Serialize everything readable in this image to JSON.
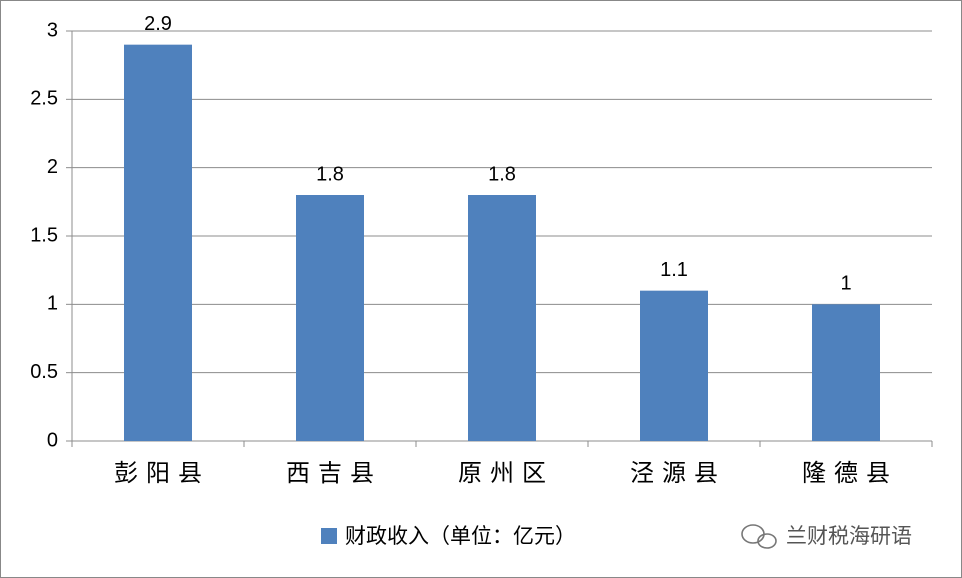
{
  "chart_data": {
    "type": "bar",
    "categories": [
      "彭阳县",
      "西吉县",
      "原州区",
      "泾源县",
      "隆德县"
    ],
    "series": [
      {
        "name": "财政收入（单位：亿元）",
        "color": "#4f81bd",
        "values": [
          2.9,
          1.8,
          1.8,
          1.1,
          1
        ]
      }
    ],
    "ylim": [
      0,
      3
    ],
    "yticks": [
      0,
      0.5,
      1,
      1.5,
      2,
      2.5,
      3
    ],
    "grid": true,
    "legend": "bottom",
    "watermark": "兰财税海研语"
  }
}
